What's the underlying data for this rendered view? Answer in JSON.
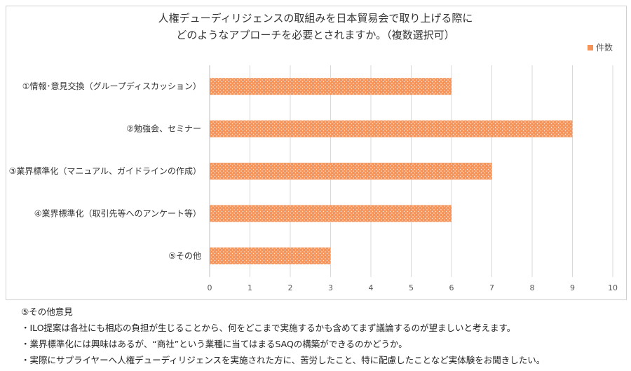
{
  "chart_data": {
    "type": "bar",
    "orientation": "horizontal",
    "title": "人権デューディリジェンスの取組みを日本貿易会で取り上げる際に",
    "subtitle": "どのようなアプローチを必要とされますか。（複数選択可）",
    "categories": [
      "①情報･意見交換（グループディスカッション）",
      "②勉強会、セミナー",
      "③業界標準化（マニュアル、ガイドラインの作成）",
      "④業界標準化（取引先等へのアンケート等）",
      "⑤その他"
    ],
    "series": [
      {
        "name": "件数",
        "values": [
          6,
          9,
          7,
          6,
          3
        ],
        "color": "#f4945a"
      }
    ],
    "xlim": [
      0,
      10
    ],
    "xticks": [
      "0",
      "1",
      "2",
      "3",
      "4",
      "5",
      "6",
      "7",
      "8",
      "9",
      "10"
    ],
    "grid": true,
    "legend_position": "top-right"
  },
  "notes": {
    "heading": "⑤その他意見",
    "lines": [
      "・ILO提案は各社にも相応の負担が生じることから、何をどこまで実施するかも含めてまず議論するのが望ましいと考えます。",
      "・業界標準化には興味はあるが、“商社”という業種に当てはまるSAQの構築ができるのかどうか。",
      "・実際にサプライヤーへ人権デューディリジェンスを実施された方に、苦労したこと、特に配慮したことなど実体験をお聞きしたい。"
    ]
  }
}
